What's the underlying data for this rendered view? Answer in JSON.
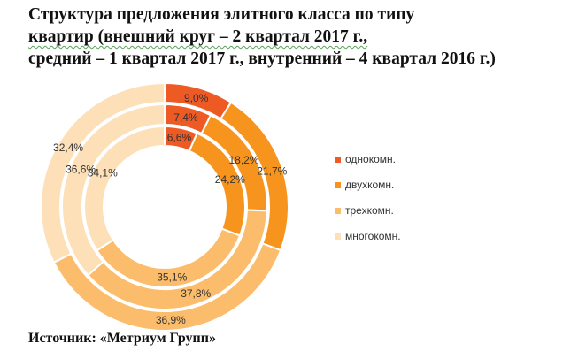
{
  "chart_data": {
    "type": "pie",
    "title_lines": [
      "Структура  предложения элитного класса по типу",
      "квартир (внешний круг  – 2 квартал  2017 г.,",
      "средний – 1 квартал  2017 г., внутренний  – 4 квартал  2016 г.)"
    ],
    "categories": [
      "однокомн.",
      "двухкомн.",
      "трехкомн.",
      "многокомн."
    ],
    "colors": [
      "#ee5a24",
      "#f7941d",
      "#fbbd6b",
      "#fde0b8"
    ],
    "series": [
      {
        "ring": "outer",
        "values": [
          9.0,
          21.7,
          36.9,
          32.4
        ],
        "labels": [
          "9,0%",
          "21,7%",
          "36,9%",
          "32,4%"
        ]
      },
      {
        "ring": "middle",
        "values": [
          7.4,
          18.2,
          37.8,
          36.6
        ],
        "labels": [
          "7,4%",
          "18,2%",
          "37,8%",
          "36,6%"
        ]
      },
      {
        "ring": "inner",
        "values": [
          6.6,
          24.2,
          35.1,
          34.1
        ],
        "labels": [
          "6,6%",
          "24,2%",
          "35,1%",
          "34,1%"
        ]
      }
    ],
    "legend_position": "right"
  },
  "source": "Источник: «Метриум Групп»"
}
